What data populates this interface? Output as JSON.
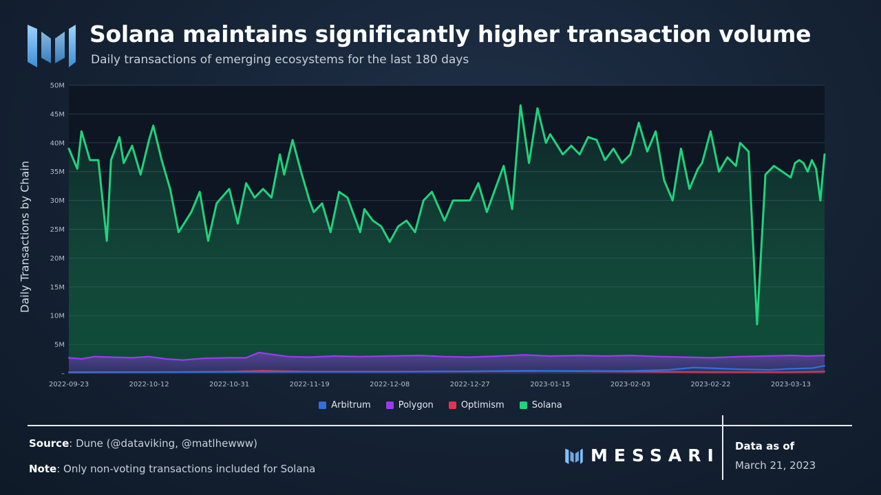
{
  "header": {
    "title": "Solana maintains significantly higher transaction volume",
    "subtitle": "Daily transactions of emerging ecosystems for the last 180 days"
  },
  "footer": {
    "source_label": "Source",
    "source_text": ": Dune (@dataviking, @matlhewww)",
    "note_label": "Note",
    "note_text": ": Only non-voting transactions included for Solana",
    "brand": "MESSARI",
    "as_of_label": "Data as of",
    "as_of_date": "March 21, 2023"
  },
  "colors": {
    "arbitrum": "#2f6fe0",
    "polygon": "#9b3bf0",
    "optimism": "#e0344f",
    "solana": "#1fd47c",
    "logo": "#7fc2ff"
  },
  "chart_data": {
    "type": "line",
    "title": "Solana maintains significantly higher transaction volume",
    "subtitle": "Daily transactions of emerging ecosystems for the last 180 days",
    "xlabel": "",
    "ylabel": "Daily Transactions by Chain",
    "x_range": [
      "2022-09-23",
      "2023-03-21"
    ],
    "ylim": [
      0,
      50000000
    ],
    "y_ticks": [
      0,
      5000000,
      10000000,
      15000000,
      20000000,
      25000000,
      30000000,
      35000000,
      40000000,
      45000000,
      50000000
    ],
    "y_tick_labels": [
      "–",
      "5M",
      "10M",
      "15M",
      "20M",
      "25M",
      "30M",
      "35M",
      "40M",
      "45M",
      "50M"
    ],
    "x_ticks": [
      "2022-09-23",
      "2022-10-12",
      "2022-10-31",
      "2022-11-19",
      "2022-12-08",
      "2022-12-27",
      "2023-01-15",
      "2023-02-03",
      "2023-02-22",
      "2023-03-13"
    ],
    "grid": true,
    "legend_position": "bottom-center",
    "series": [
      {
        "name": "Arbitrum",
        "points": [
          [
            "2022-09-23",
            200000
          ],
          [
            "2022-10-12",
            220000
          ],
          [
            "2022-10-31",
            250000
          ],
          [
            "2022-11-19",
            270000
          ],
          [
            "2022-12-08",
            280000
          ],
          [
            "2022-12-27",
            350000
          ],
          [
            "2023-01-10",
            450000
          ],
          [
            "2023-01-15",
            420000
          ],
          [
            "2023-02-03",
            400000
          ],
          [
            "2023-02-12",
            600000
          ],
          [
            "2023-02-18",
            1000000
          ],
          [
            "2023-02-22",
            900000
          ],
          [
            "2023-03-01",
            700000
          ],
          [
            "2023-03-08",
            600000
          ],
          [
            "2023-03-13",
            800000
          ],
          [
            "2023-03-18",
            900000
          ],
          [
            "2023-03-21",
            1300000
          ]
        ]
      },
      {
        "name": "Polygon",
        "points": [
          [
            "2022-09-23",
            2700000
          ],
          [
            "2022-09-26",
            2500000
          ],
          [
            "2022-09-29",
            2900000
          ],
          [
            "2022-10-03",
            2800000
          ],
          [
            "2022-10-08",
            2700000
          ],
          [
            "2022-10-12",
            2900000
          ],
          [
            "2022-10-16",
            2500000
          ],
          [
            "2022-10-20",
            2300000
          ],
          [
            "2022-10-25",
            2600000
          ],
          [
            "2022-10-31",
            2700000
          ],
          [
            "2022-11-04",
            2700000
          ],
          [
            "2022-11-07",
            3600000
          ],
          [
            "2022-11-10",
            3300000
          ],
          [
            "2022-11-14",
            2900000
          ],
          [
            "2022-11-19",
            2800000
          ],
          [
            "2022-11-25",
            3000000
          ],
          [
            "2022-12-01",
            2900000
          ],
          [
            "2022-12-08",
            3000000
          ],
          [
            "2022-12-15",
            3100000
          ],
          [
            "2022-12-21",
            2900000
          ],
          [
            "2022-12-27",
            2800000
          ],
          [
            "2023-01-03",
            3000000
          ],
          [
            "2023-01-09",
            3200000
          ],
          [
            "2023-01-15",
            3000000
          ],
          [
            "2023-01-22",
            3100000
          ],
          [
            "2023-01-28",
            3000000
          ],
          [
            "2023-02-03",
            3100000
          ],
          [
            "2023-02-10",
            2900000
          ],
          [
            "2023-02-16",
            2800000
          ],
          [
            "2023-02-22",
            2700000
          ],
          [
            "2023-03-01",
            2900000
          ],
          [
            "2023-03-07",
            3000000
          ],
          [
            "2023-03-13",
            3100000
          ],
          [
            "2023-03-17",
            3000000
          ],
          [
            "2023-03-21",
            3100000
          ]
        ]
      },
      {
        "name": "Optimism",
        "points": [
          [
            "2022-09-23",
            150000
          ],
          [
            "2022-10-12",
            200000
          ],
          [
            "2022-10-31",
            300000
          ],
          [
            "2022-11-08",
            450000
          ],
          [
            "2022-11-19",
            300000
          ],
          [
            "2022-12-08",
            300000
          ],
          [
            "2022-12-27",
            350000
          ],
          [
            "2023-01-15",
            400000
          ],
          [
            "2023-02-03",
            300000
          ],
          [
            "2023-02-22",
            200000
          ],
          [
            "2023-03-13",
            200000
          ],
          [
            "2023-03-21",
            300000
          ]
        ]
      },
      {
        "name": "Solana",
        "points": [
          [
            "2022-09-23",
            39000000
          ],
          [
            "2022-09-25",
            35500000
          ],
          [
            "2022-09-26",
            42000000
          ],
          [
            "2022-09-28",
            37000000
          ],
          [
            "2022-09-30",
            37000000
          ],
          [
            "2022-10-02",
            23000000
          ],
          [
            "2022-10-03",
            37000000
          ],
          [
            "2022-10-05",
            41000000
          ],
          [
            "2022-10-06",
            36500000
          ],
          [
            "2022-10-08",
            39500000
          ],
          [
            "2022-10-10",
            34500000
          ],
          [
            "2022-10-12",
            40500000
          ],
          [
            "2022-10-13",
            43000000
          ],
          [
            "2022-10-15",
            37000000
          ],
          [
            "2022-10-17",
            32000000
          ],
          [
            "2022-10-19",
            24500000
          ],
          [
            "2022-10-22",
            28000000
          ],
          [
            "2022-10-24",
            31500000
          ],
          [
            "2022-10-26",
            23000000
          ],
          [
            "2022-10-28",
            29500000
          ],
          [
            "2022-10-31",
            32000000
          ],
          [
            "2022-11-02",
            26000000
          ],
          [
            "2022-11-04",
            33000000
          ],
          [
            "2022-11-06",
            30500000
          ],
          [
            "2022-11-08",
            32000000
          ],
          [
            "2022-11-10",
            30500000
          ],
          [
            "2022-11-12",
            38000000
          ],
          [
            "2022-11-13",
            34500000
          ],
          [
            "2022-11-15",
            40500000
          ],
          [
            "2022-11-17",
            35000000
          ],
          [
            "2022-11-19",
            30000000
          ],
          [
            "2022-11-20",
            28000000
          ],
          [
            "2022-11-22",
            29500000
          ],
          [
            "2022-11-24",
            24500000
          ],
          [
            "2022-11-26",
            31500000
          ],
          [
            "2022-11-28",
            30500000
          ],
          [
            "2022-12-01",
            24500000
          ],
          [
            "2022-12-02",
            28500000
          ],
          [
            "2022-12-04",
            26500000
          ],
          [
            "2022-12-06",
            25500000
          ],
          [
            "2022-12-08",
            22800000
          ],
          [
            "2022-12-10",
            25500000
          ],
          [
            "2022-12-12",
            26500000
          ],
          [
            "2022-12-14",
            24500000
          ],
          [
            "2022-12-16",
            30000000
          ],
          [
            "2022-12-18",
            31500000
          ],
          [
            "2022-12-21",
            26500000
          ],
          [
            "2022-12-23",
            30000000
          ],
          [
            "2022-12-27",
            30000000
          ],
          [
            "2022-12-29",
            33000000
          ],
          [
            "2022-12-31",
            28000000
          ],
          [
            "2023-01-02",
            32000000
          ],
          [
            "2023-01-04",
            36000000
          ],
          [
            "2023-01-06",
            28500000
          ],
          [
            "2023-01-08",
            46500000
          ],
          [
            "2023-01-10",
            36500000
          ],
          [
            "2023-01-12",
            46000000
          ],
          [
            "2023-01-14",
            40000000
          ],
          [
            "2023-01-15",
            41500000
          ],
          [
            "2023-01-18",
            38000000
          ],
          [
            "2023-01-20",
            39500000
          ],
          [
            "2023-01-22",
            38000000
          ],
          [
            "2023-01-24",
            41000000
          ],
          [
            "2023-01-26",
            40500000
          ],
          [
            "2023-01-28",
            37000000
          ],
          [
            "2023-01-30",
            39000000
          ],
          [
            "2023-02-01",
            36500000
          ],
          [
            "2023-02-03",
            38000000
          ],
          [
            "2023-02-05",
            43500000
          ],
          [
            "2023-02-07",
            38500000
          ],
          [
            "2023-02-09",
            42000000
          ],
          [
            "2023-02-11",
            33500000
          ],
          [
            "2023-02-13",
            30000000
          ],
          [
            "2023-02-15",
            39000000
          ],
          [
            "2023-02-17",
            32000000
          ],
          [
            "2023-02-19",
            35500000
          ],
          [
            "2023-02-20",
            36500000
          ],
          [
            "2023-02-22",
            42000000
          ],
          [
            "2023-02-24",
            35000000
          ],
          [
            "2023-02-26",
            37500000
          ],
          [
            "2023-02-28",
            36000000
          ],
          [
            "2023-03-01",
            40000000
          ],
          [
            "2023-03-03",
            38500000
          ],
          [
            "2023-03-05",
            8500000
          ],
          [
            "2023-03-07",
            34500000
          ],
          [
            "2023-03-09",
            36000000
          ],
          [
            "2023-03-11",
            35000000
          ],
          [
            "2023-03-13",
            34000000
          ],
          [
            "2023-03-14",
            36500000
          ],
          [
            "2023-03-15",
            37000000
          ],
          [
            "2023-03-16",
            36500000
          ],
          [
            "2023-03-17",
            35000000
          ],
          [
            "2023-03-18",
            37000000
          ],
          [
            "2023-03-19",
            35500000
          ],
          [
            "2023-03-20",
            30000000
          ],
          [
            "2023-03-21",
            38000000
          ]
        ]
      }
    ]
  }
}
